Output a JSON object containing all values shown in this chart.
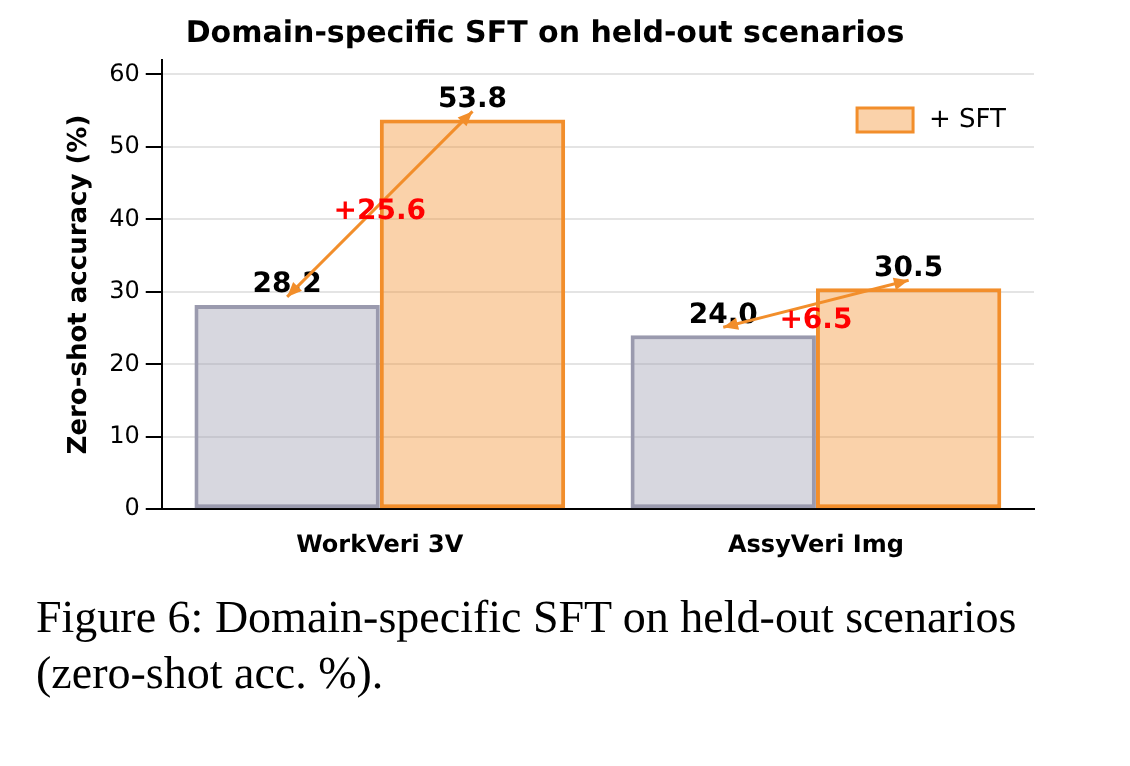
{
  "chart_data": {
    "type": "bar",
    "title": "Domain-specific SFT on held-out scenarios",
    "ylabel": "Zero-shot accuracy (%)",
    "categories": [
      "WorkVeri 3V",
      "AssyVeri Img"
    ],
    "series": [
      {
        "color": "#9a9aae",
        "values": [
          28.2,
          24.0
        ],
        "value_labels": [
          "28.2",
          "24.0"
        ]
      },
      {
        "name": "+ SFT",
        "color": "#f28e2b",
        "values": [
          53.8,
          30.5
        ],
        "value_labels": [
          "53.8",
          "30.5"
        ]
      }
    ],
    "ylim": [
      0,
      62
    ],
    "yticks": [
      0,
      10,
      20,
      30,
      40,
      50,
      60
    ],
    "grid": "y",
    "legend": "top right",
    "annotations": [
      {
        "text": "+25.6",
        "x": "WorkVeri 3V",
        "y": 41
      },
      {
        "text": "+6.5",
        "x": "AssyVeri Img",
        "y": 26
      },
      "Figure 6: Domain-specific SFT on held-out scenarios (zero-shot acc. %)."
    ]
  }
}
